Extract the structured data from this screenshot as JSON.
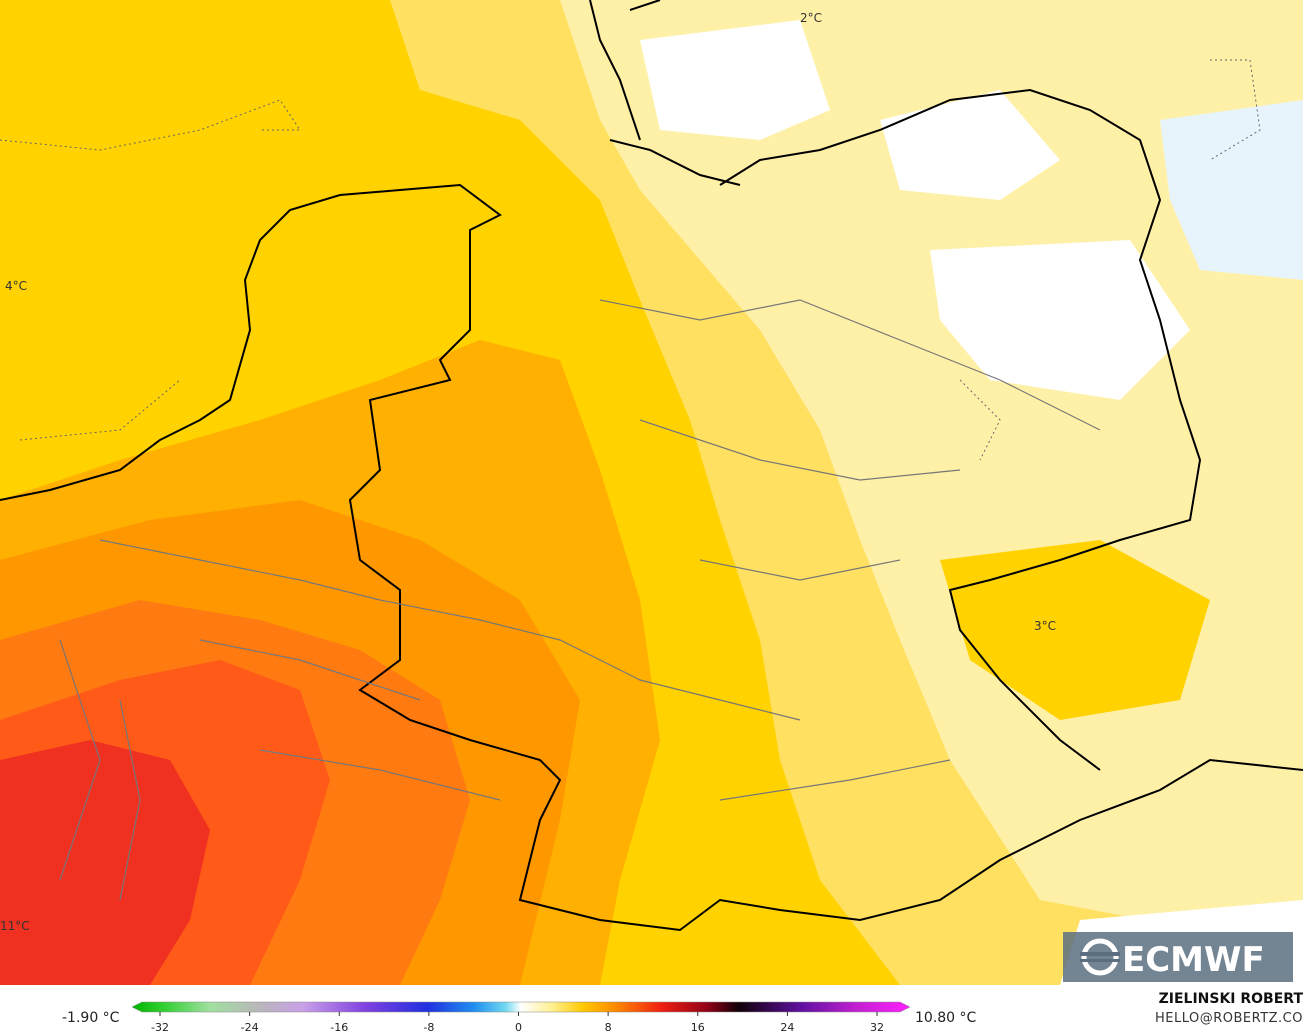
{
  "map": {
    "labels": [
      "2°C",
      "4°C",
      "3°C",
      "11°C"
    ]
  },
  "legend": {
    "min_label": "-1.90 °C",
    "max_label": "10.80 °C",
    "ticks": [
      -32,
      -24,
      -16,
      -8,
      0,
      8,
      16,
      24,
      32
    ]
  },
  "credits": {
    "author": "ZIELINSKI ROBERT",
    "contact": "HELLO@ROBERTZ.CO"
  },
  "logo": "ECMWF"
}
